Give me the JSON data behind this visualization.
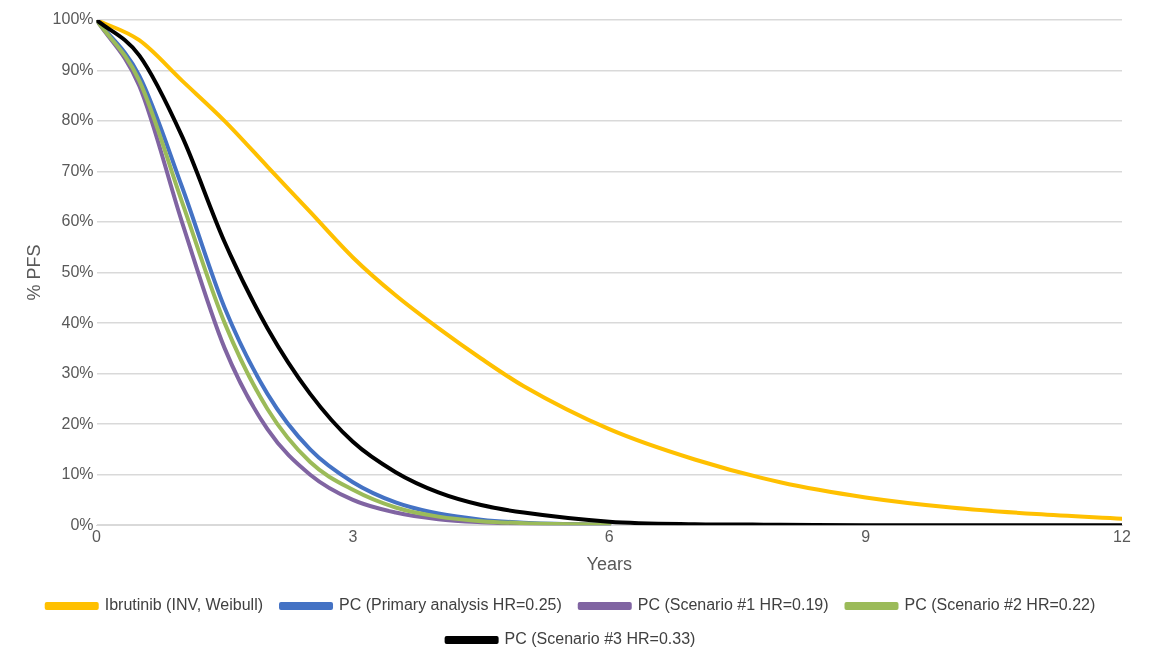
{
  "chart_data": {
    "type": "line",
    "xlabel": "Years",
    "ylabel": "% PFS",
    "xlim": [
      0,
      12
    ],
    "xticks": [
      0,
      3,
      6,
      9,
      12
    ],
    "ylim": [
      0,
      100
    ],
    "yticks": [
      {
        "value": 0,
        "label": "0%"
      },
      {
        "value": 10,
        "label": "10%"
      },
      {
        "value": 20,
        "label": "20%"
      },
      {
        "value": 30,
        "label": "30%"
      },
      {
        "value": 40,
        "label": "40%"
      },
      {
        "value": 50,
        "label": "50%"
      },
      {
        "value": 60,
        "label": "60%"
      },
      {
        "value": 70,
        "label": "70%"
      },
      {
        "value": 80,
        "label": "80%"
      },
      {
        "value": 90,
        "label": "90%"
      },
      {
        "value": 100,
        "label": "100%"
      }
    ],
    "grid": "y",
    "legend": "bottom",
    "marker": "none",
    "line_style": "solid",
    "x": [
      0,
      0.5,
      1,
      1.5,
      2,
      2.5,
      3,
      3.5,
      4,
      4.5,
      5,
      6,
      7,
      8,
      9,
      10,
      11,
      12
    ],
    "series": [
      {
        "name": "Ibrutinib (INV, Weibull)",
        "color": "#ffc000",
        "values": [
          100,
          96,
          88,
          80,
          71,
          62,
          53,
          45.5,
          39,
          33,
          27.5,
          19,
          13,
          8.5,
          5.5,
          3.5,
          2.2,
          1.3
        ]
      },
      {
        "name": "PC (Primary analysis HR=0.25)",
        "color": "#4472c4",
        "values": [
          100,
          89,
          67,
          43,
          26,
          15,
          8.5,
          4.5,
          2.3,
          1.1,
          0.5,
          0.1,
          null,
          null,
          null,
          null,
          null,
          null
        ]
      },
      {
        "name": "PC (Scenario #1 HR=0.19)",
        "color": "#8064a2",
        "values": [
          100,
          87,
          60,
          35,
          19,
          10,
          5,
          2.5,
          1.2,
          0.6,
          0.3,
          0.1,
          null,
          null,
          null,
          null,
          null,
          null
        ]
      },
      {
        "name": "PC (Scenario #2 HR=0.22)",
        "color": "#9bbb59",
        "values": [
          100,
          88,
          64,
          40,
          23,
          12.5,
          7,
          3.5,
          1.7,
          0.8,
          0.4,
          0.1,
          null,
          null,
          null,
          null,
          null,
          null
        ]
      },
      {
        "name": "PC (Scenario #3 HR=0.33)",
        "color": "#000000",
        "values": [
          100,
          93,
          77,
          56,
          39,
          26,
          16.5,
          10.5,
          6.5,
          4,
          2.5,
          0.7,
          0.2,
          0.1,
          0,
          0,
          0,
          0
        ]
      }
    ]
  }
}
